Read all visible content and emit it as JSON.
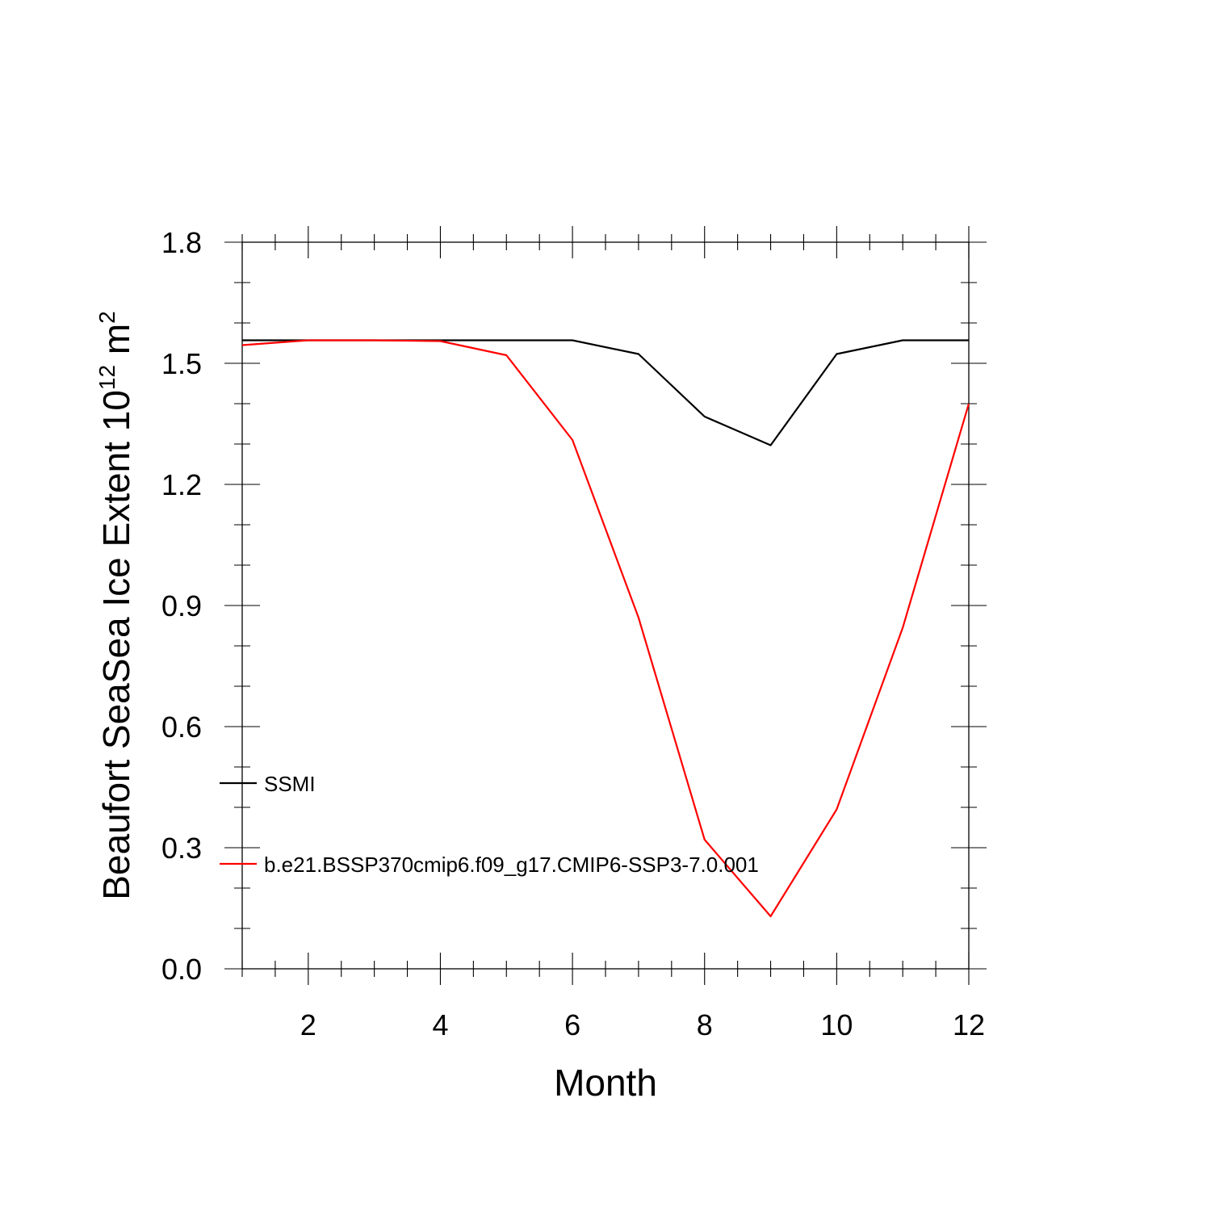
{
  "chart_data": {
    "type": "line",
    "xlabel": "Month",
    "ylabel_prefix": "Beaufort SeaSea Ice Extent 10",
    "ylabel_exp": "12",
    "ylabel_unit": " m",
    "ylabel_unit_exp": "2",
    "xlim": [
      1,
      12
    ],
    "ylim": [
      0.0,
      1.8
    ],
    "x_ticks": [
      2,
      4,
      6,
      8,
      10,
      12
    ],
    "x_tick_labels": [
      "2",
      "4",
      "6",
      "8",
      "10",
      "12"
    ],
    "y_ticks": [
      0.0,
      0.3,
      0.6,
      0.9,
      1.2,
      1.5,
      1.8
    ],
    "y_tick_labels": [
      "0.0",
      "0.3",
      "0.6",
      "0.9",
      "1.2",
      "1.5",
      "1.8"
    ],
    "x_minor_step": 0.5,
    "y_minor_step": 0.1,
    "grid": false,
    "legend_placement": "inside-left",
    "x": [
      1,
      2,
      3,
      4,
      5,
      6,
      7,
      8,
      9,
      10,
      11,
      12
    ],
    "series": [
      {
        "name": "SSMI",
        "color": "#000000",
        "values": [
          1.557,
          1.557,
          1.557,
          1.557,
          1.557,
          1.557,
          1.523,
          1.368,
          1.297,
          1.523,
          1.557,
          1.557
        ]
      },
      {
        "name": "b.e21.BSSP370cmip6.f09_g17.CMIP6-SSP3-7.0.001",
        "color": "#ff0000",
        "values": [
          1.545,
          1.557,
          1.557,
          1.555,
          1.52,
          1.31,
          0.87,
          0.32,
          0.13,
          0.395,
          0.845,
          1.4
        ]
      }
    ]
  }
}
